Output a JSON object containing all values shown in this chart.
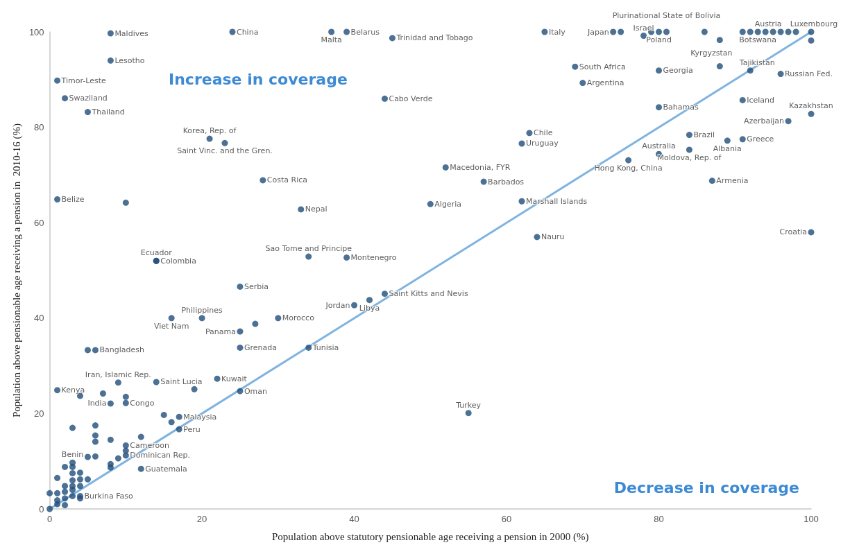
{
  "chart_data": {
    "type": "scatter",
    "xlabel": "Population above statutory pensionable age receiving a pension in 2000 (%)",
    "ylabel": "Population above pensionable age receiving a pension in  2010-16 (%)",
    "xlim": [
      0,
      100
    ],
    "xticks": [
      0,
      20,
      40,
      60,
      80,
      100
    ],
    "ylim": [
      0,
      100
    ],
    "yticks": [
      0,
      20,
      40,
      60,
      80,
      100
    ],
    "grid": false,
    "series": [
      {
        "type": "line",
        "marker": "none",
        "color": "#7fb3e0",
        "x": [
          0,
          100
        ],
        "values": [
          0,
          100
        ]
      },
      {
        "marker": "circle",
        "color": "#1f4e79",
        "x": [
          8,
          24,
          37,
          39,
          45,
          65,
          74,
          78,
          80,
          81,
          93,
          96,
          100,
          8,
          1,
          2,
          5,
          21,
          23,
          28,
          1,
          14,
          14,
          25,
          20,
          16,
          30,
          25,
          25,
          6,
          9,
          1,
          8,
          10,
          14,
          22,
          25,
          17,
          17,
          10,
          10,
          12,
          3,
          4,
          44,
          33,
          34,
          39,
          40,
          42,
          44,
          34,
          55,
          52,
          57,
          50,
          62,
          64,
          63,
          62,
          69,
          70,
          80,
          88,
          92,
          96,
          91,
          80,
          100,
          97,
          84,
          89,
          91,
          84,
          80,
          76,
          87,
          100,
          5,
          4,
          7,
          10,
          19,
          15,
          16,
          3,
          6,
          6,
          6,
          8,
          12,
          10,
          5,
          6,
          9,
          8,
          8,
          3,
          2,
          1,
          3,
          4,
          3,
          4,
          5,
          2,
          3,
          4,
          2,
          3,
          3,
          0,
          1,
          1,
          1,
          2,
          2,
          4,
          0,
          10,
          27,
          75,
          79,
          86,
          88,
          91,
          92,
          94,
          95,
          97,
          98,
          100
        ],
        "values": [
          99.7,
          100,
          100,
          100,
          98.7,
          100,
          100,
          99.2,
          100,
          100,
          100,
          100,
          100,
          94,
          89.8,
          86.1,
          83.2,
          77.6,
          76.7,
          68.9,
          64.9,
          52,
          52,
          46.6,
          40,
          40,
          40,
          37.2,
          33.8,
          33.3,
          26.5,
          24.9,
          22.1,
          22.2,
          26.6,
          27.3,
          24.7,
          19.3,
          16.7,
          13.3,
          11.2,
          8.4,
          9.7,
          2.7,
          86,
          62.8,
          52.9,
          52.7,
          42.7,
          43.8,
          45.1,
          33.8,
          20.1,
          71.6,
          68.6,
          63.9,
          64.5,
          57,
          78.8,
          76.6,
          92.7,
          89.3,
          91.9,
          92.8,
          91.9,
          91.2,
          85.7,
          84.2,
          82.8,
          81.3,
          78.4,
          77.2,
          77.5,
          75.3,
          74.4,
          73.1,
          68.8,
          58,
          33.3,
          23.7,
          24.2,
          23.5,
          25.1,
          19.7,
          18.2,
          17,
          17.5,
          15.4,
          14.1,
          14.5,
          15.1,
          12.2,
          10.9,
          11,
          10.6,
          9.4,
          8.7,
          8.8,
          8.8,
          6.5,
          7.5,
          7.6,
          6,
          6.2,
          6.2,
          4.8,
          4.8,
          4.8,
          3.6,
          4,
          2.7,
          3.3,
          3.3,
          1.8,
          1,
          2.2,
          0.8,
          2.2,
          0,
          64.2,
          38.8,
          100,
          100,
          100,
          98.3,
          100,
          100,
          100,
          100,
          100,
          100,
          98.2
        ]
      }
    ],
    "annotations": [
      "Increase in coverage",
      "Decrease in coverage",
      {
        "text": "Maldives",
        "x": 8,
        "y": 99.7
      },
      {
        "text": "China",
        "x": 24,
        "y": 100
      },
      {
        "text": "Malta",
        "x": 37,
        "y": 100
      },
      {
        "text": "Belarus",
        "x": 39,
        "y": 100
      },
      {
        "text": "Trinidad and Tobago",
        "x": 45,
        "y": 98.7
      },
      {
        "text": "Italy",
        "x": 65,
        "y": 100
      },
      {
        "text": "Japan",
        "x": 74,
        "y": 100
      },
      {
        "text": "Israel",
        "x": 78,
        "y": 99.2
      },
      {
        "text": "Poland",
        "x": 80,
        "y": 100
      },
      {
        "text": "Plurinational State of Bolivia",
        "x": 81,
        "y": 100
      },
      {
        "text": "Botswana",
        "x": 93,
        "y": 100
      },
      {
        "text": "Austria",
        "x": 96,
        "y": 100
      },
      {
        "text": "Luxembourg",
        "x": 100,
        "y": 100
      },
      {
        "text": "Lesotho",
        "x": 8,
        "y": 94
      },
      {
        "text": "Timor-Leste",
        "x": 1,
        "y": 89.8
      },
      {
        "text": "Swaziland",
        "x": 2,
        "y": 86.1
      },
      {
        "text": "Thailand",
        "x": 5,
        "y": 83.2
      },
      {
        "text": "Korea, Rep. of",
        "x": 21,
        "y": 77.6
      },
      {
        "text": "Saint Vinc. and the Gren.",
        "x": 23,
        "y": 76.7
      },
      {
        "text": "Costa Rica",
        "x": 28,
        "y": 68.9
      },
      {
        "text": "Belize",
        "x": 1,
        "y": 64.9
      },
      {
        "text": "Ecuador",
        "x": 14,
        "y": 52
      },
      {
        "text": "Colombia",
        "x": 14,
        "y": 52
      },
      {
        "text": "Serbia",
        "x": 25,
        "y": 46.6
      },
      {
        "text": "Philippines",
        "x": 20,
        "y": 40
      },
      {
        "text": "Viet Nam",
        "x": 16,
        "y": 40
      },
      {
        "text": "Morocco",
        "x": 30,
        "y": 40
      },
      {
        "text": "Panama",
        "x": 25,
        "y": 37.2
      },
      {
        "text": "Grenada",
        "x": 25,
        "y": 33.8
      },
      {
        "text": "Bangladesh",
        "x": 6,
        "y": 33.3
      },
      {
        "text": "Iran, Islamic Rep.",
        "x": 9,
        "y": 26.5
      },
      {
        "text": "Kenya",
        "x": 1,
        "y": 24.9
      },
      {
        "text": "India",
        "x": 8,
        "y": 22.1
      },
      {
        "text": "Congo",
        "x": 10,
        "y": 22.2
      },
      {
        "text": "Saint Lucia",
        "x": 14,
        "y": 26.6
      },
      {
        "text": "Kuwait",
        "x": 22,
        "y": 27.3
      },
      {
        "text": "Oman",
        "x": 25,
        "y": 24.7
      },
      {
        "text": "Malaysia",
        "x": 17,
        "y": 19.3
      },
      {
        "text": "Peru",
        "x": 17,
        "y": 16.7
      },
      {
        "text": "Cameroon",
        "x": 10,
        "y": 13.3
      },
      {
        "text": "Dominican Rep.",
        "x": 10,
        "y": 11.2
      },
      {
        "text": "Guatemala",
        "x": 12,
        "y": 8.4
      },
      {
        "text": "Benin",
        "x": 3,
        "y": 9.7
      },
      {
        "text": "Burkina Faso",
        "x": 4,
        "y": 2.7
      },
      {
        "text": "Cabo Verde",
        "x": 44,
        "y": 86
      },
      {
        "text": "Nepal",
        "x": 33,
        "y": 62.8
      },
      {
        "text": "Sao Tome and Principe",
        "x": 34,
        "y": 52.9
      },
      {
        "text": "Montenegro",
        "x": 39,
        "y": 52.7
      },
      {
        "text": "Jordan",
        "x": 40,
        "y": 42.7
      },
      {
        "text": "Libya",
        "x": 42,
        "y": 43.8
      },
      {
        "text": "Saint Kitts and Nevis",
        "x": 44,
        "y": 45.1
      },
      {
        "text": "Tunisia",
        "x": 34,
        "y": 33.8
      },
      {
        "text": "Turkey",
        "x": 55,
        "y": 20.1
      },
      {
        "text": "Macedonia, FYR",
        "x": 52,
        "y": 71.6
      },
      {
        "text": "Barbados",
        "x": 57,
        "y": 68.6
      },
      {
        "text": "Algeria",
        "x": 50,
        "y": 63.9
      },
      {
        "text": "Marshall Islands",
        "x": 62,
        "y": 64.5
      },
      {
        "text": "Nauru",
        "x": 64,
        "y": 57
      },
      {
        "text": "Chile",
        "x": 63,
        "y": 78.8
      },
      {
        "text": "Uruguay",
        "x": 62,
        "y": 76.6
      },
      {
        "text": "South Africa",
        "x": 69,
        "y": 92.7
      },
      {
        "text": "Argentina",
        "x": 70,
        "y": 89.3
      },
      {
        "text": "Georgia",
        "x": 80,
        "y": 91.9
      },
      {
        "text": "Kyrgyzstan",
        "x": 88,
        "y": 92.8
      },
      {
        "text": "Tajikistan",
        "x": 92,
        "y": 91.9
      },
      {
        "text": "Russian Fed.",
        "x": 96,
        "y": 91.2
      },
      {
        "text": "Iceland",
        "x": 91,
        "y": 85.7
      },
      {
        "text": "Bahamas",
        "x": 80,
        "y": 84.2
      },
      {
        "text": "Kazakhstan",
        "x": 100,
        "y": 82.8
      },
      {
        "text": "Azerbaijan",
        "x": 97,
        "y": 81.3
      },
      {
        "text": "Brazil",
        "x": 84,
        "y": 78.4
      },
      {
        "text": "Albania",
        "x": 89,
        "y": 77.2
      },
      {
        "text": "Greece",
        "x": 91,
        "y": 77.5
      },
      {
        "text": "Moldova, Rep. of",
        "x": 84,
        "y": 75.3
      },
      {
        "text": "Australia",
        "x": 80,
        "y": 74.4
      },
      {
        "text": "Hong Kong, China",
        "x": 76,
        "y": 73.1
      },
      {
        "text": "Armenia",
        "x": 87,
        "y": 68.8
      },
      {
        "text": "Croatia",
        "x": 100,
        "y": 58
      }
    ]
  }
}
